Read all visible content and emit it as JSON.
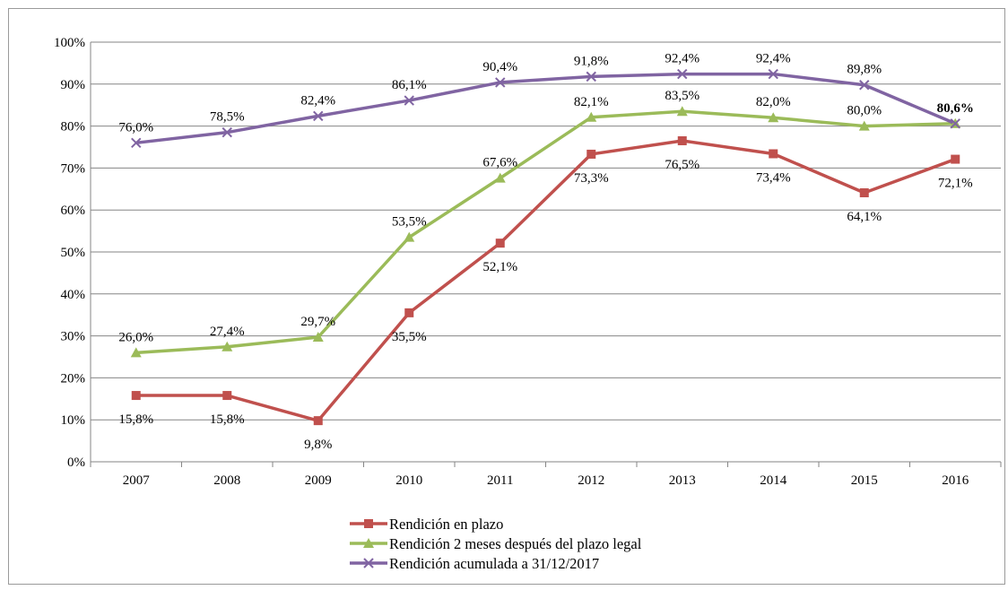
{
  "chart_data": {
    "type": "line",
    "categories": [
      "2007",
      "2008",
      "2009",
      "2010",
      "2011",
      "2012",
      "2013",
      "2014",
      "2015",
      "2016"
    ],
    "ylim": [
      0,
      100
    ],
    "yticks": [
      "0%",
      "10%",
      "20%",
      "30%",
      "40%",
      "50%",
      "60%",
      "70%",
      "80%",
      "90%",
      "100%"
    ],
    "grid": true,
    "legend_position": "bottom",
    "series": [
      {
        "name": "Rendición en plazo",
        "color": "#c0504d",
        "marker": "square",
        "values": [
          15.8,
          15.8,
          9.8,
          35.5,
          52.1,
          73.3,
          76.5,
          73.4,
          64.1,
          72.1
        ],
        "labels": [
          "15,8%",
          "15,8%",
          "9,8%",
          "35,5%",
          "52,1%",
          "73,3%",
          "76,5%",
          "73,4%",
          "64,1%",
          "72,1%"
        ]
      },
      {
        "name": "Rendición 2 meses después del plazo legal",
        "color": "#9bbb59",
        "marker": "triangle",
        "values": [
          26.0,
          27.4,
          29.7,
          53.5,
          67.6,
          82.1,
          83.5,
          82.0,
          80.0,
          80.6
        ],
        "labels": [
          "26,0%",
          "27,4%",
          "29,7%",
          "53,5%",
          "67,6%",
          "82,1%",
          "83,5%",
          "82,0%",
          "80,0%",
          ""
        ]
      },
      {
        "name": "Rendición acumulada a 31/12/2017",
        "color": "#8064a2",
        "marker": "x",
        "values": [
          76.0,
          78.5,
          82.4,
          86.1,
          90.4,
          91.8,
          92.4,
          92.4,
          89.8,
          80.6
        ],
        "labels": [
          "76,0%",
          "78,5%",
          "82,4%",
          "86,1%",
          "90,4%",
          "91,8%",
          "92,4%",
          "92,4%",
          "89,8%",
          "80,6%"
        ]
      }
    ]
  }
}
